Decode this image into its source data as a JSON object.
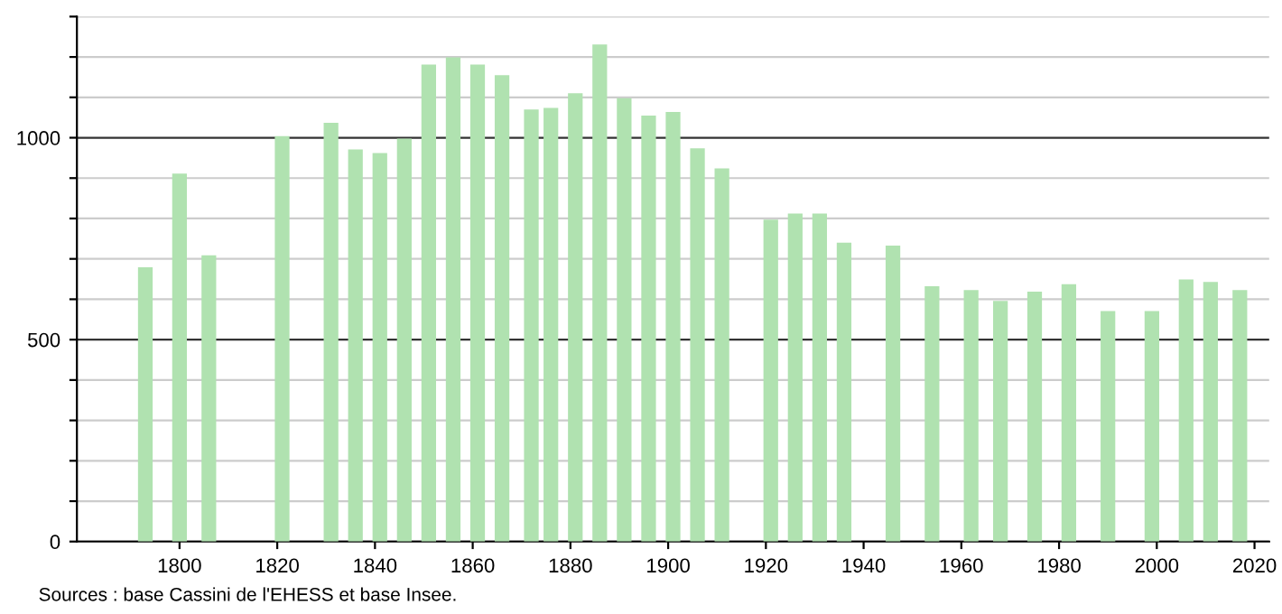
{
  "chart_data": {
    "type": "bar",
    "x": [
      1793,
      1800,
      1806,
      1821,
      1831,
      1836,
      1841,
      1846,
      1851,
      1856,
      1861,
      1866,
      1872,
      1876,
      1881,
      1886,
      1891,
      1896,
      1901,
      1906,
      1911,
      1921,
      1926,
      1931,
      1936,
      1946,
      1954,
      1962,
      1968,
      1975,
      1982,
      1990,
      1999,
      2006,
      2011,
      2017
    ],
    "values": [
      679,
      911,
      709,
      1004,
      1037,
      971,
      962,
      998,
      1181,
      1199,
      1181,
      1155,
      1070,
      1074,
      1110,
      1231,
      1098,
      1055,
      1064,
      974,
      924,
      797,
      812,
      812,
      740,
      733,
      632,
      623,
      596,
      619,
      637,
      571,
      571,
      649,
      643,
      623
    ],
    "color": "#b0e2b0",
    "xlim": [
      1779,
      2023
    ],
    "xticks": [
      1800,
      1820,
      1840,
      1860,
      1880,
      1900,
      1920,
      1940,
      1960,
      1980,
      2000,
      2020
    ],
    "ylim": [
      0,
      1300
    ],
    "yticks": [
      0,
      {
        "value": 100,
        "label": null
      },
      {
        "value": 200,
        "label": null
      },
      {
        "value": 300,
        "label": null
      },
      {
        "value": 400,
        "label": null
      },
      500,
      {
        "value": 600,
        "label": null
      },
      {
        "value": 700,
        "label": null
      },
      {
        "value": 800,
        "label": null
      },
      {
        "value": 900,
        "label": null
      },
      1000,
      {
        "value": 1100,
        "label": null
      },
      {
        "value": 1200,
        "label": null
      },
      {
        "value": 1300,
        "label": null
      }
    ],
    "grid": "y",
    "annotations": [
      "Sources : base Cassini de l'EHESS et base Insee."
    ]
  }
}
